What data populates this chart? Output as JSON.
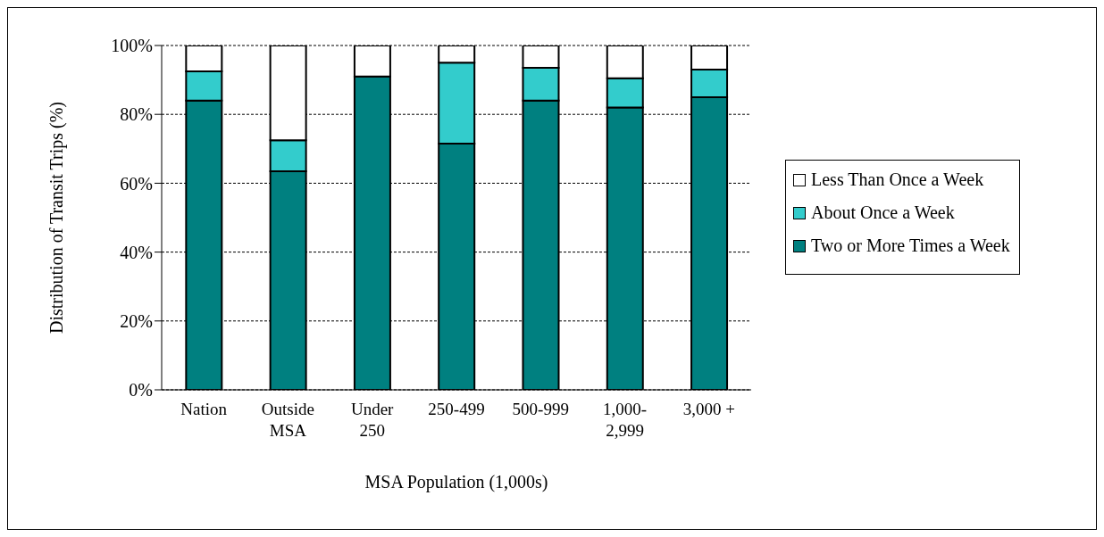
{
  "chart_data": {
    "type": "bar",
    "stacked": true,
    "xlabel": "MSA Population (1,000s)",
    "ylabel": "Distribution of Transit Trips (%)",
    "categories": [
      "Nation",
      "Outside MSA",
      "Under 250",
      "250-499",
      "500-999",
      "1,000-2,999",
      "3,000 +"
    ],
    "series": [
      {
        "name": "Two or More Times a Week",
        "color": "#008080",
        "values": [
          84,
          63.5,
          91,
          71.5,
          84,
          82,
          85
        ]
      },
      {
        "name": "About Once a Week",
        "color": "#33cccc",
        "values": [
          8.5,
          9,
          0,
          23.5,
          9.5,
          8.5,
          8
        ]
      },
      {
        "name": "Less Than Once a Week",
        "color": "#ffffff",
        "values": [
          7.5,
          27.5,
          9,
          5,
          6.5,
          9.5,
          7
        ]
      }
    ],
    "ylim": [
      0,
      100
    ],
    "yticks": [
      {
        "value": 0,
        "label": "0%"
      },
      {
        "value": 20,
        "label": "20%"
      },
      {
        "value": 40,
        "label": "40%"
      },
      {
        "value": 60,
        "label": "60%"
      },
      {
        "value": 80,
        "label": "80%"
      },
      {
        "value": 100,
        "label": "100%"
      }
    ],
    "grid": "y",
    "legend": "right"
  }
}
